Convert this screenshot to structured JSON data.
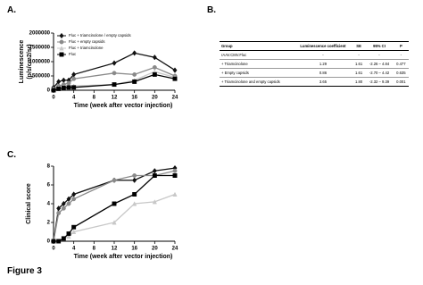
{
  "panel_labels": [
    "A.",
    "B.",
    "C."
  ],
  "caption": "Figure 3",
  "chart_data": [
    {
      "type": "line",
      "x_label": "Time  (week after vector injection)",
      "y_label": [
        "Luminescence",
        "(p/s/cm2/sr)"
      ],
      "x": [
        0,
        1,
        2,
        3,
        4,
        12,
        16,
        20,
        24
      ],
      "xlim": [
        0,
        24
      ],
      "xticks": [
        0,
        4,
        8,
        12,
        16,
        20,
        24
      ],
      "ylim": [
        0,
        2000000
      ],
      "yticks": [
        0,
        500000,
        1000000,
        1500000,
        2000000
      ],
      "series": [
        {
          "name": "Fluc + triamcinolone / empty capsids",
          "color": "#111111",
          "marker": "diamond",
          "values": [
            100000,
            300000,
            350000,
            350000,
            550000,
            950000,
            1300000,
            1150000,
            700000
          ]
        },
        {
          "name": "Fluc + empty capsids",
          "color": "#8a8a8a",
          "marker": "circle",
          "values": [
            50000,
            150000,
            200000,
            250000,
            400000,
            600000,
            550000,
            800000,
            500000
          ]
        },
        {
          "name": "Fluc + triamcinolone",
          "color": "#c8c8c8",
          "marker": "triangle",
          "values": [
            20000,
            80000,
            100000,
            100000,
            150000,
            200000,
            350000,
            650000,
            450000
          ]
        },
        {
          "name": "Fluc",
          "color": "#000000",
          "marker": "square",
          "values": [
            0,
            50000,
            80000,
            100000,
            100000,
            200000,
            300000,
            550000,
            400000
          ]
        }
      ]
    },
    {
      "type": "line",
      "x_label": "Time  (week after vector injection)",
      "y_label": [
        "Clinical score"
      ],
      "x": [
        0,
        1,
        2,
        3,
        4,
        12,
        16,
        20,
        24
      ],
      "xlim": [
        0,
        24
      ],
      "xticks": [
        0,
        4,
        8,
        12,
        16,
        20,
        24
      ],
      "ylim": [
        0,
        8
      ],
      "yticks": [
        0,
        2,
        4,
        6,
        8
      ],
      "series": [
        {
          "color": "#111111",
          "marker": "diamond",
          "values": [
            0,
            3.5,
            4,
            4.5,
            5,
            6.5,
            6.5,
            7.5,
            7.8
          ]
        },
        {
          "color": "#8a8a8a",
          "marker": "circle",
          "values": [
            0,
            3,
            3.5,
            4,
            4.5,
            6.5,
            7,
            7,
            7.5
          ]
        },
        {
          "color": "#c8c8c8",
          "marker": "triangle",
          "values": [
            0,
            0,
            0.3,
            0.5,
            1,
            2,
            4,
            4.2,
            5
          ]
        },
        {
          "color": "#000000",
          "marker": "square",
          "values": [
            0,
            0,
            0.3,
            0.8,
            1.5,
            4,
            5,
            7,
            7
          ]
        }
      ]
    }
  ],
  "table": {
    "header": [
      "Group",
      "Luminescence coefficient",
      "SE",
      "95% CI",
      "P"
    ],
    "rows": [
      [
        "rAAV.CMV.Fluc",
        "-",
        "-",
        "-",
        "-"
      ],
      [
        "+ Triamcinolone",
        "1.29",
        "1.61",
        "-2.26 – 4.84",
        "0.477"
      ],
      [
        "+ Empty capsids",
        "0.86",
        "1.61",
        "-2.70 – 4.42",
        "0.635"
      ],
      [
        "+ Triamcinolone and empty capsids",
        "3.65",
        "1.80",
        "-2.32 – 9.39",
        "0.001"
      ]
    ]
  }
}
